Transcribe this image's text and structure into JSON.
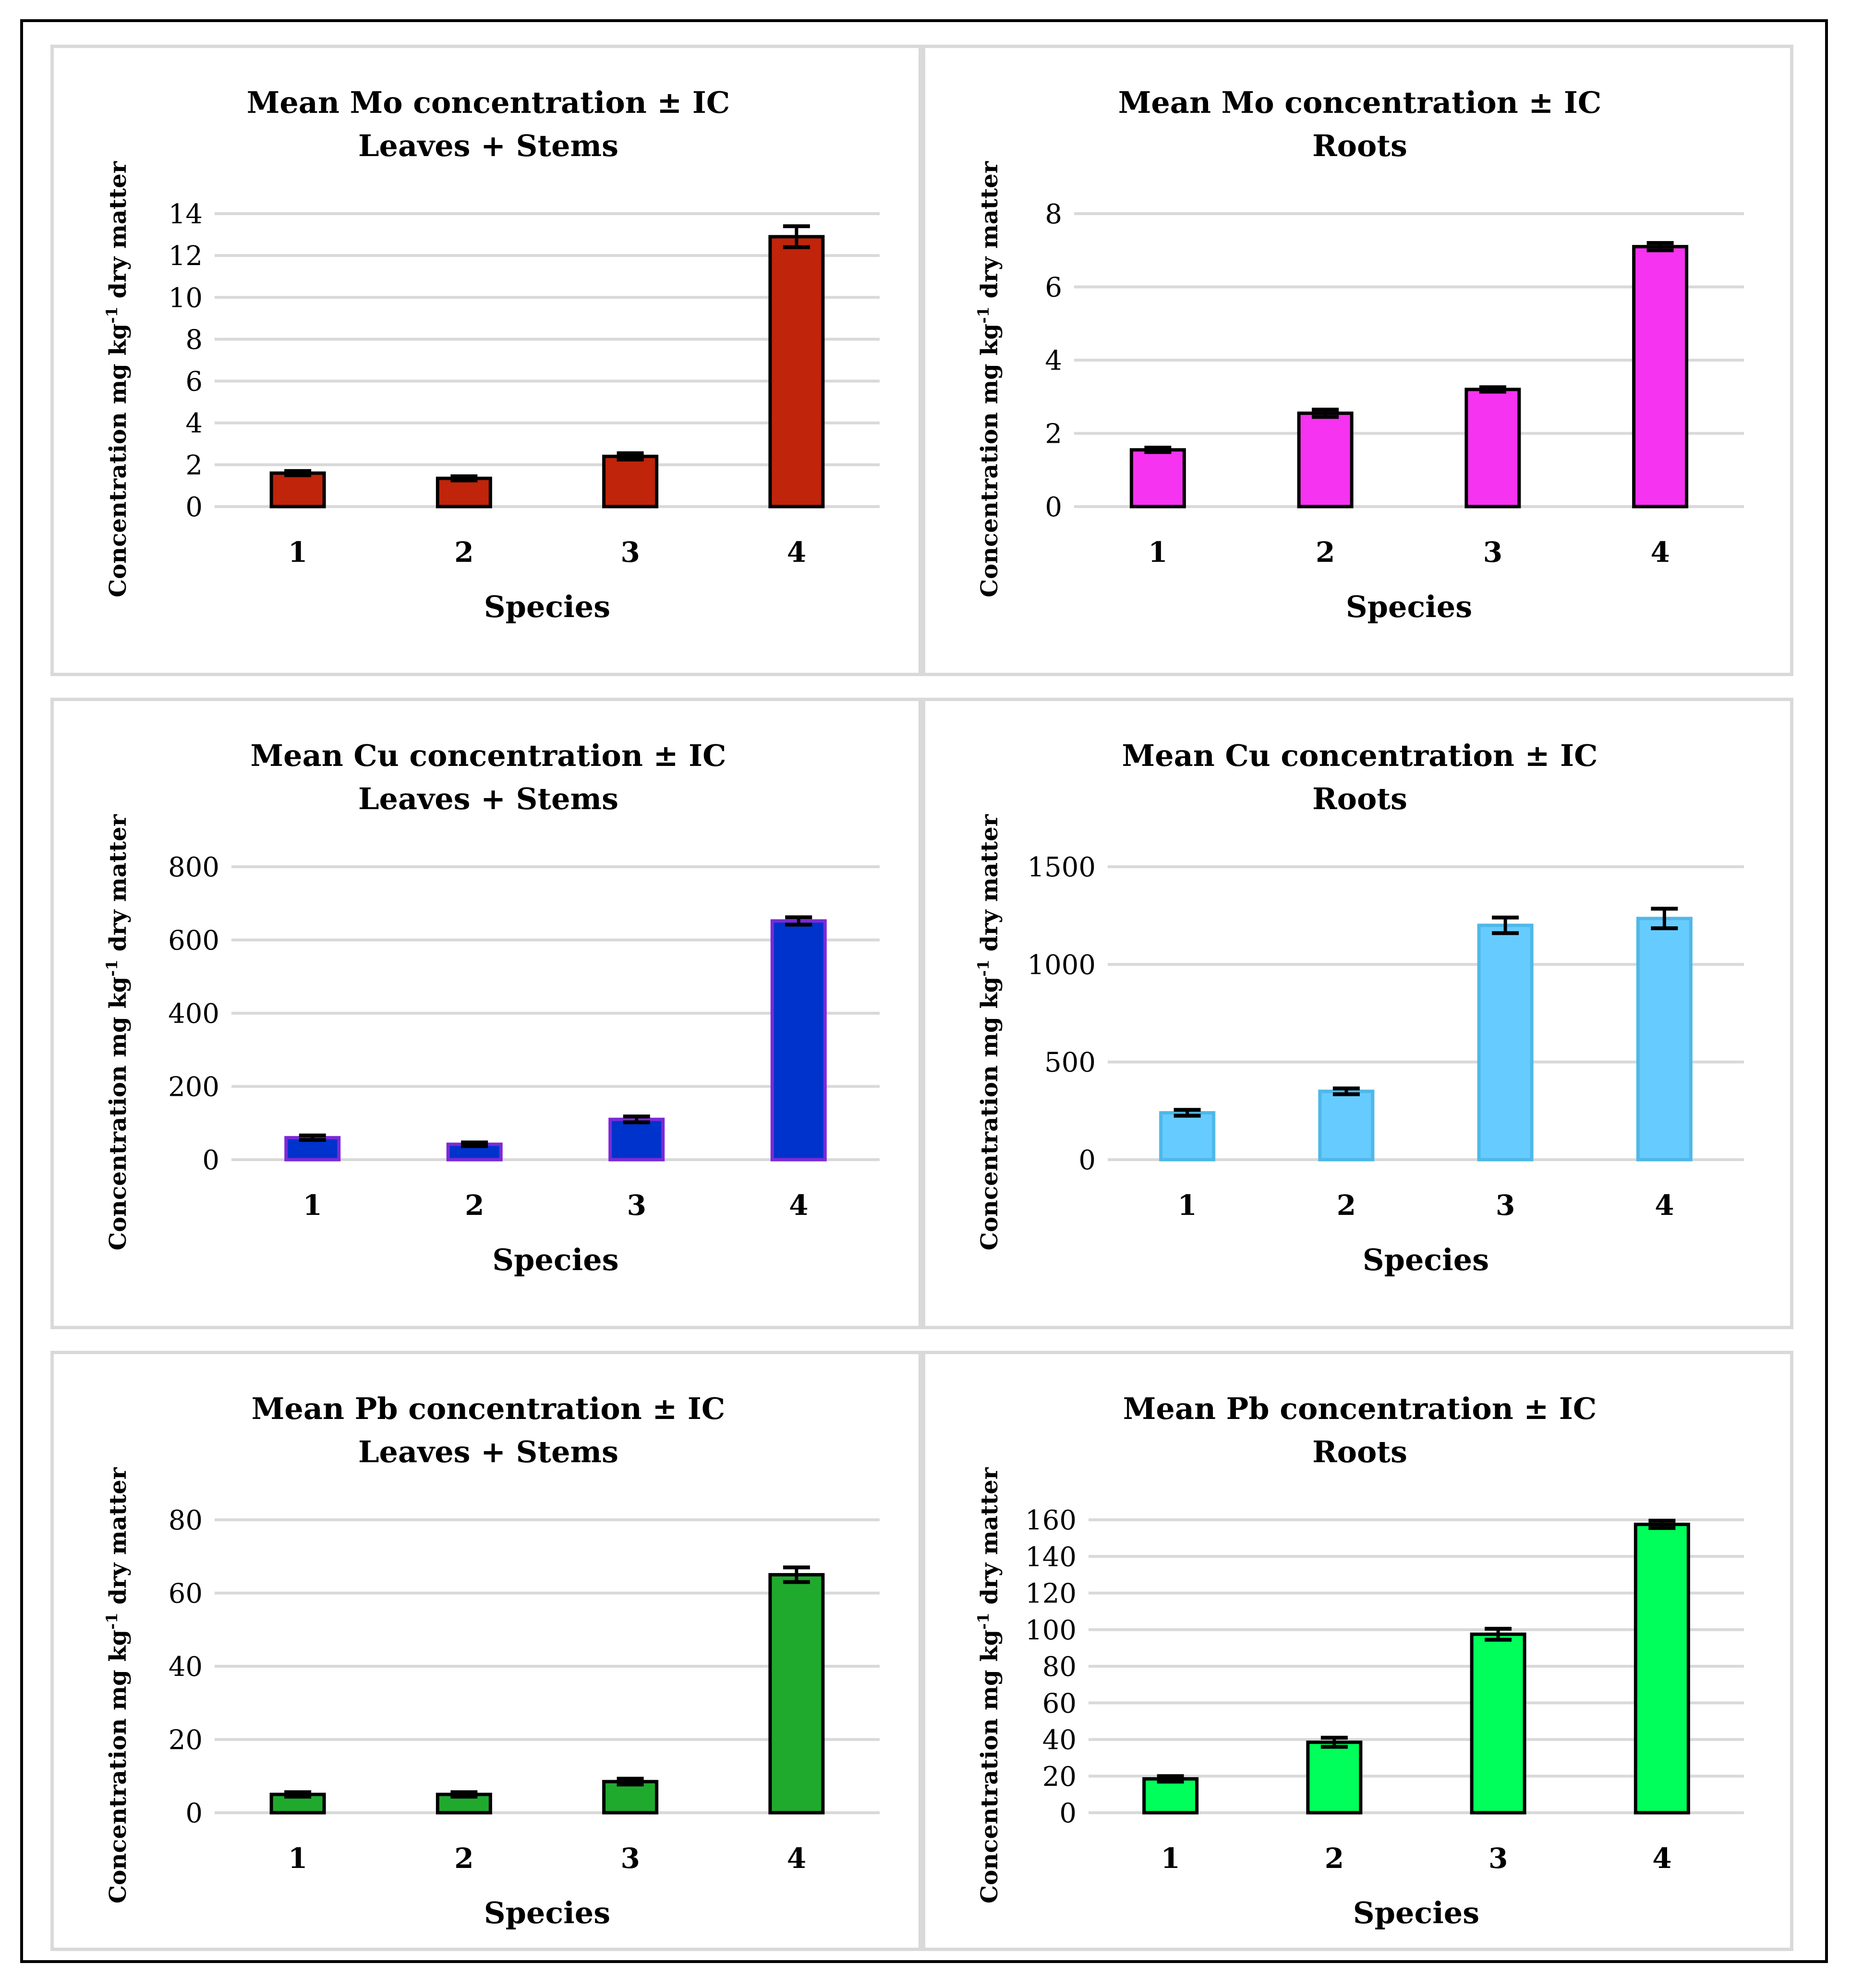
{
  "figure": {
    "y_axis_label": "Concentration mg kg-1 dry matter",
    "x_axis_label": "Species"
  },
  "chart_data": [
    {
      "type": "bar",
      "title": "Mean Mo concentration  ±  IC",
      "subtitle": "Leaves + Stems",
      "xlabel": "Species",
      "ylabel": "Concentration mg kg-1 dry matter",
      "categories": [
        "1",
        "2",
        "3",
        "4"
      ],
      "values": [
        1.6,
        1.35,
        2.4,
        12.9
      ],
      "errors": [
        0.1,
        0.1,
        0.15,
        0.5
      ],
      "ylim": [
        0,
        14
      ],
      "yticks": [
        0,
        2,
        4,
        6,
        8,
        10,
        12,
        14
      ],
      "color": "#c0240a",
      "edge_color": "#000000",
      "grid": true
    },
    {
      "type": "bar",
      "title": "Mean Mo concentration ± IC",
      "subtitle": "Roots",
      "xlabel": "Species",
      "ylabel": "Concentration mg kg-1 dry matter",
      "categories": [
        "1",
        "2",
        "3",
        "4"
      ],
      "values": [
        1.55,
        2.55,
        3.2,
        7.1
      ],
      "errors": [
        0.06,
        0.1,
        0.06,
        0.1
      ],
      "ylim": [
        0,
        8
      ],
      "yticks": [
        0,
        2,
        4,
        6,
        8
      ],
      "color": "#f533f0",
      "edge_color": "#000000",
      "grid": true
    },
    {
      "type": "bar",
      "title": "Mean Cu concentration  ±  IC",
      "subtitle": "Leaves + Stems",
      "xlabel": "Species",
      "ylabel": "Concentration mg kg-1 dry matter",
      "categories": [
        "1",
        "2",
        "3",
        "4"
      ],
      "values": [
        60,
        42,
        110,
        652
      ],
      "errors": [
        6,
        5,
        8,
        10
      ],
      "ylim": [
        0,
        800
      ],
      "yticks": [
        0,
        200,
        400,
        600,
        800
      ],
      "color": "#0033cc",
      "edge_color": "#7a2ad8",
      "grid": true
    },
    {
      "type": "bar",
      "title": "Mean Cu concentration  ±  IC",
      "subtitle": "Roots",
      "xlabel": "Species",
      "ylabel": "Concentration mg kg-1 dry matter",
      "categories": [
        "1",
        "2",
        "3",
        "4"
      ],
      "values": [
        240,
        350,
        1200,
        1235
      ],
      "errors": [
        15,
        15,
        40,
        50
      ],
      "ylim": [
        0,
        1500
      ],
      "yticks": [
        0,
        500,
        1000,
        1500
      ],
      "color": "#66ccff",
      "edge_color": "#4fb8e8",
      "grid": true
    },
    {
      "type": "bar",
      "title": "Mean Pb concentration  ±  IC",
      "subtitle": "Leaves + Stems",
      "xlabel": "Species",
      "ylabel": "Concentration mg kg-1 dry matter",
      "categories": [
        "1",
        "2",
        "3",
        "4"
      ],
      "values": [
        5,
        5,
        8.5,
        65
      ],
      "errors": [
        0.6,
        0.6,
        0.8,
        2
      ],
      "ylim": [
        0,
        80
      ],
      "yticks": [
        0,
        20,
        40,
        60,
        80
      ],
      "color": "#1faa2e",
      "edge_color": "#000000",
      "grid": true
    },
    {
      "type": "bar",
      "title": "Mean Pb concentration  ±  IC",
      "subtitle": "Roots",
      "xlabel": "Species",
      "ylabel": "Concentration mg kg-1 dry matter",
      "categories": [
        "1",
        "2",
        "3",
        "4"
      ],
      "values": [
        18.5,
        38.5,
        97.5,
        157.5
      ],
      "errors": [
        1.5,
        2.5,
        3,
        2
      ],
      "ylim": [
        0,
        160
      ],
      "yticks": [
        0,
        20,
        40,
        60,
        80,
        100,
        120,
        140,
        160
      ],
      "color": "#00ff5a",
      "edge_color": "#000000",
      "grid": true
    }
  ]
}
